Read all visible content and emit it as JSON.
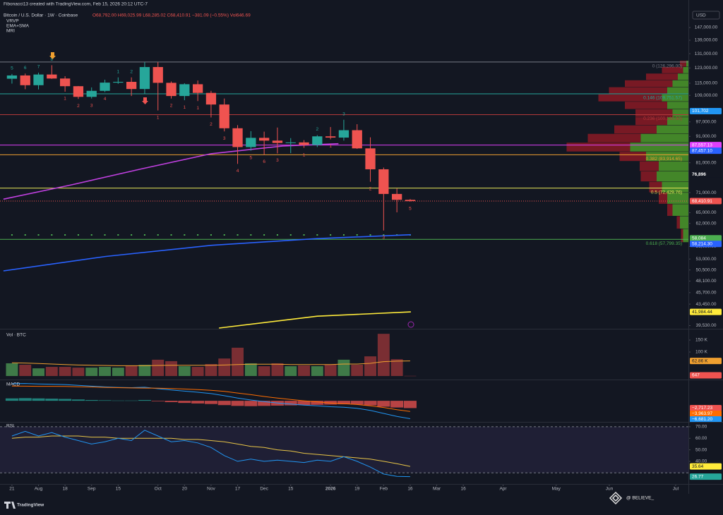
{
  "header": {
    "credit": "Fibonacci13 created with TradingView.com, Feb 15, 2026 20:12 UTC-7"
  },
  "footer": {
    "logo": "TradingView",
    "watermark": "@ BELIEVE_"
  },
  "chart_data": [
    {
      "type": "candlestick",
      "title": "Bitcoin / U.S. Dollar · 1W · Coinbase",
      "subtitle": "O68,792.00 H69,025.99 L68,285.02 C68,410.91 −381.09 (−0.55%) Vol646.69",
      "indicators": [
        "VRVP",
        "EMA+SMA",
        "MRI"
      ],
      "currency": "USD",
      "x": [
        0,
        1,
        2,
        3,
        4,
        5,
        6,
        7,
        8,
        9,
        10,
        11,
        12,
        13,
        14,
        15,
        16,
        17,
        18,
        19,
        20,
        21,
        22,
        23,
        24,
        25,
        26,
        27,
        28,
        29,
        30
      ],
      "open": [
        117300,
        119000,
        114000,
        119500,
        117400,
        113500,
        108300,
        111200,
        115300,
        115700,
        112100,
        123500,
        115200,
        108700,
        114500,
        110200,
        104700,
        94300,
        86800,
        90400,
        89300,
        88400,
        88600,
        87600,
        91000,
        90500,
        93500,
        86300,
        78700,
        70600,
        68792
      ],
      "high": [
        119800,
        120000,
        120500,
        124500,
        118600,
        113600,
        112900,
        116800,
        118000,
        118000,
        126200,
        126200,
        115900,
        115000,
        116400,
        111200,
        107500,
        95600,
        93100,
        92900,
        94600,
        90300,
        89500,
        91500,
        94800,
        97900,
        96000,
        90600,
        79300,
        72300,
        69025.99
      ],
      "low": [
        114800,
        112000,
        111900,
        117200,
        110800,
        107300,
        107500,
        110600,
        114700,
        108700,
        109700,
        102000,
        107500,
        106700,
        106300,
        98900,
        93000,
        80600,
        85400,
        83900,
        84400,
        84500,
        86500,
        86800,
        89800,
        89300,
        86100,
        74500,
        60100,
        65100,
        68285.02
      ],
      "close": [
        119000,
        114000,
        119500,
        117400,
        113500,
        108300,
        111200,
        115300,
        115700,
        112100,
        123500,
        115200,
        108700,
        114500,
        110200,
        104700,
        94300,
        86800,
        90400,
        89300,
        88400,
        88600,
        87600,
        91000,
        90500,
        93500,
        86300,
        78700,
        70600,
        68800,
        68410.91
      ],
      "up_color": "#26a69a",
      "down_color": "#ef5350",
      "xlim": [
        -0.9,
        50.96
      ],
      "xticks": [
        {
          "value": 0,
          "label": "21"
        },
        {
          "value": 2,
          "label": "Aug"
        },
        {
          "value": 4,
          "label": "18"
        },
        {
          "value": 6,
          "label": "Sep"
        },
        {
          "value": 8,
          "label": "15"
        },
        {
          "value": 11,
          "label": "Oct"
        },
        {
          "value": 13,
          "label": "20"
        },
        {
          "value": 15,
          "label": "Nov"
        },
        {
          "value": 17,
          "label": "17"
        },
        {
          "value": 19,
          "label": "Dec"
        },
        {
          "value": 21,
          "label": "15"
        },
        {
          "value": 24,
          "label": "2026"
        },
        {
          "value": 26,
          "label": "19"
        },
        {
          "value": 28,
          "label": "Feb"
        },
        {
          "value": 30,
          "label": "16"
        },
        {
          "value": 32,
          "label": "Mar"
        },
        {
          "value": 34,
          "label": "16"
        },
        {
          "value": 37,
          "label": "Apr"
        },
        {
          "value": 41,
          "label": "May"
        },
        {
          "value": 45,
          "label": "Jun"
        },
        {
          "value": 50,
          "label": "Jul"
        }
      ],
      "ylim": [
        39100,
        157400
      ],
      "log_scale": true,
      "yticks": [
        {
          "value": 147000,
          "label": "147,000.00"
        },
        {
          "value": 139000,
          "label": "139,000.00"
        },
        {
          "value": 131000,
          "label": "131,000.00"
        },
        {
          "value": 123000,
          "label": "123,000.00"
        },
        {
          "value": 115000,
          "label": "115,000.00"
        },
        {
          "value": 109000,
          "label": "109,000.00"
        },
        {
          "value": 97000,
          "label": "97,000.00"
        },
        {
          "value": 91000,
          "label": "91,000.00"
        },
        {
          "value": 85000,
          "label": "85,000.00"
        },
        {
          "value": 81000,
          "label": "81,000.00"
        },
        {
          "value": 71000,
          "label": "71,000.00"
        },
        {
          "value": 65000,
          "label": "65,000.00"
        },
        {
          "value": 62000,
          "label": "62,000.00"
        },
        {
          "value": 56000,
          "label": "56,000.00"
        },
        {
          "value": 53000,
          "label": "53,000.00"
        },
        {
          "value": 50500,
          "label": "50,500.00"
        },
        {
          "value": 48100,
          "label": "48,100.00"
        },
        {
          "value": 45700,
          "label": "45,700.00"
        },
        {
          "value": 43450,
          "label": "43,450.00"
        },
        {
          "value": 39530,
          "label": "39,530.00"
        }
      ],
      "levels": [
        {
          "value": 126296,
          "label": "0 (126,296.00)",
          "color": "#787b86"
        },
        {
          "value": 109751.57,
          "label": "0.146 (109,751.57)",
          "color": "#26a69a"
        },
        {
          "value": 100130.3,
          "label": "0.236 (100,130.30)",
          "color": "#b2383a"
        },
        {
          "value": 87557.13,
          "color": "#e040fb"
        },
        {
          "value": 83914.65,
          "label": "0.382 (83,914.65)",
          "color": "#f0a030"
        },
        {
          "value": 72429.76,
          "label": "0.5 (72,429.76)",
          "color": "#e8e85a"
        },
        {
          "value": 68410.91,
          "color": "#ef5350"
        },
        {
          "value": 57799.35,
          "label": "0.618 (57,799.35)",
          "color": "#4caf50"
        }
      ],
      "price_badges": [
        {
          "value": 101702,
          "label": "101,702",
          "color": "#2196f3"
        },
        {
          "value": 87557.13,
          "label": "87,557.13",
          "color": "#e040fb"
        },
        {
          "value": 87457.1,
          "label": "87,457.10",
          "color": "#2962ff"
        },
        {
          "value": 76896,
          "label": "76,896",
          "color": "#131722"
        },
        {
          "value": 68410.91,
          "label": "68,410.91",
          "color": "#ef5350"
        },
        {
          "value": 58084,
          "label": "58,084",
          "color": "#4caf50"
        },
        {
          "value": 58214.3,
          "label": "58,214.30",
          "color": "#2962ff"
        },
        {
          "value": 41984.44,
          "label": "41,984.44",
          "color": "#ffeb3b"
        }
      ],
      "overlays": [
        {
          "color": "#c040e0",
          "x": [
            -0.64,
            4.4,
            9.7,
            15.0,
            20.4,
            24.6
          ],
          "values": [
            69000,
            73400,
            78800,
            84300,
            87200,
            88100
          ]
        },
        {
          "color": "#2962ff",
          "x": [
            -0.64,
            7.07,
            15.05,
            23.0,
            30.05
          ],
          "values": [
            50300,
            53600,
            56300,
            58000,
            59000
          ]
        },
        {
          "color": "#ffeb3b",
          "x": [
            15.6,
            23.0,
            30.05
          ],
          "values": [
            39100,
            41200,
            41984.44
          ]
        }
      ],
      "profile": {
        "bins": [
          57000,
          60500,
          64000,
          67500,
          71000,
          74500,
          78000,
          81500,
          85000,
          88500,
          92000,
          95500,
          99000,
          102500,
          106000,
          109500,
          113000,
          116500,
          120000,
          123500,
          127000
        ],
        "up": [
          5,
          8,
          15,
          20,
          25,
          30,
          28,
          40,
          55,
          45,
          30,
          20,
          15,
          20,
          25,
          20,
          15,
          10,
          5,
          2
        ],
        "down": [
          2,
          3,
          5,
          8,
          12,
          15,
          18,
          25,
          60,
          50,
          40,
          30,
          35,
          40,
          60,
          55,
          45,
          30,
          20,
          6
        ],
        "xlim": [
          0,
          100
        ],
        "up_color": "#4c9a2a",
        "down_color": "#8b1a24"
      },
      "setup_up": [
        "5",
        "6",
        "7",
        "8",
        null,
        null,
        null,
        null,
        "1",
        "2",
        null,
        null,
        null,
        null,
        null,
        null,
        null,
        null,
        null,
        null,
        null,
        null,
        null,
        "2",
        null,
        "3",
        null,
        null,
        null,
        null,
        null
      ],
      "setup_down": [
        null,
        null,
        null,
        null,
        "1",
        "2",
        "3",
        "4",
        null,
        null,
        null,
        "1",
        "2",
        "1",
        "1",
        "2",
        "3",
        "4",
        "5",
        "6",
        "3",
        null,
        "1",
        null,
        "1",
        null,
        null,
        "2",
        "3",
        null,
        "5"
      ]
    },
    {
      "type": "bar",
      "title": "Vol · BTC",
      "values": [
        53000,
        47000,
        32000,
        38000,
        38000,
        35000,
        35000,
        38000,
        35000,
        44000,
        47000,
        68000,
        62000,
        41000,
        38000,
        50000,
        73000,
        118000,
        53000,
        41000,
        53000,
        41000,
        44000,
        41000,
        47000,
        68000,
        47000,
        82000,
        176000,
        70000,
        646.69
      ],
      "ma": [
        55000,
        54000,
        52000,
        50000,
        48000,
        46000,
        45000,
        44000,
        43000,
        43000,
        43000,
        44000,
        45000,
        45000,
        45000,
        45000,
        46000,
        48000,
        49000,
        49000,
        49000,
        48000,
        48000,
        48000,
        48000,
        50000,
        50000,
        53000,
        60000,
        62000,
        62860
      ],
      "ma_color": "#f0a030",
      "up_color": "#3f7a48",
      "down_color": "#7a2e33",
      "ylim": [
        -11800,
        185300
      ],
      "yticks": [
        {
          "value": 150000,
          "label": "150 K"
        },
        {
          "value": 100000,
          "label": "100 K"
        }
      ],
      "badges": [
        {
          "value": 62860,
          "label": "62.86 K",
          "color": "#f0a030"
        },
        {
          "value": 646.69,
          "label": "647",
          "color": "#ef5350"
        }
      ]
    },
    {
      "type": "macd",
      "title": "MACD",
      "histogram": [
        900,
        1000,
        900,
        800,
        700,
        500,
        300,
        200,
        100,
        100,
        300,
        -200,
        -500,
        -800,
        -1000,
        -1200,
        -1600,
        -1900,
        -2000,
        -1900,
        -1800,
        -1700,
        -1600,
        -1500,
        -1400,
        -1300,
        -1400,
        -1700,
        -2200,
        -2500,
        -2717.23
      ],
      "macd": [
        6400,
        6450,
        6300,
        6200,
        6050,
        5750,
        5450,
        5200,
        5000,
        4900,
        5050,
        4500,
        4050,
        3600,
        3200,
        2700,
        1900,
        1000,
        300,
        -300,
        -800,
        -1200,
        -1600,
        -1900,
        -2200,
        -2400,
        -2800,
        -3600,
        -4700,
        -5800,
        -6681.2
      ],
      "signal": [
        5500,
        5450,
        5400,
        5400,
        5350,
        5250,
        5150,
        5000,
        4900,
        4800,
        4750,
        4700,
        4550,
        4400,
        4200,
        3900,
        3500,
        2900,
        2300,
        1600,
        1000,
        500,
        0,
        -400,
        -800,
        -1100,
        -1400,
        -1900,
        -2500,
        -3300,
        -3963.97
      ],
      "macd_color": "#2196f3",
      "signal_color": "#ff6d00",
      "up_color": "#26a69a",
      "down_color": "#ef5350",
      "ylim": [
        -7600,
        7400
      ],
      "badges": [
        {
          "value": -2717.23,
          "label": "−2,717.23",
          "color": "#ef5350"
        },
        {
          "value": -3963.97,
          "label": "−3,963.97",
          "color": "#ff6d00"
        },
        {
          "value": -6681.2,
          "label": "−6,681.20",
          "color": "#2196f3"
        }
      ]
    },
    {
      "type": "rsi",
      "title": "RSI",
      "values": [
        62,
        66,
        62,
        65,
        61,
        58,
        55,
        57,
        60,
        58,
        67,
        62,
        57,
        58,
        56,
        52,
        45,
        40,
        42,
        40,
        41,
        40,
        39,
        41,
        40,
        44,
        40,
        35,
        29,
        27,
        26.77
      ],
      "ma": [
        60,
        61,
        61,
        62,
        62,
        62,
        61,
        61,
        60,
        60,
        60,
        60,
        60,
        59,
        59,
        58,
        57,
        55,
        53,
        52,
        50,
        49,
        47,
        46,
        45,
        44,
        43,
        42,
        40,
        38,
        35.64
      ],
      "color": "#2196f3",
      "ma_color": "#e8c547",
      "ylim": [
        21,
        73
      ],
      "yticks": [
        {
          "value": 70,
          "label": "70.00"
        },
        {
          "value": 60,
          "label": "60.00"
        },
        {
          "value": 50,
          "label": "50.00"
        },
        {
          "value": 40,
          "label": "40.00"
        }
      ],
      "band": [
        30,
        70
      ],
      "badges": [
        {
          "value": 35.64,
          "label": "35.64",
          "color": "#ffeb3b"
        },
        {
          "value": 26.77,
          "label": "26.77",
          "color": "#26a69a"
        }
      ]
    }
  ]
}
